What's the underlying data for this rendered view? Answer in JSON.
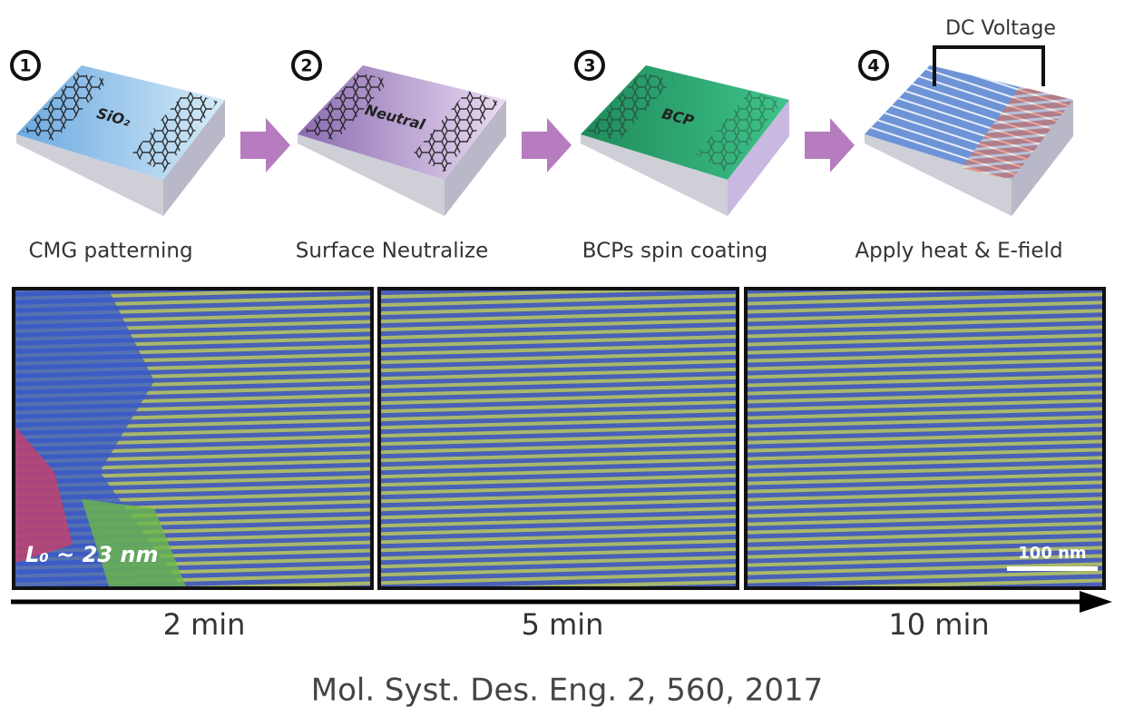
{
  "dc_voltage": "DC Voltage",
  "steps": [
    {
      "number": "1",
      "label": "CMG patterning",
      "surface_label": "SiO₂"
    },
    {
      "number": "2",
      "label": "Surface Neutralize",
      "surface_label": "Neutral"
    },
    {
      "number": "3",
      "label": "BCPs spin coating",
      "surface_label": "BCP"
    },
    {
      "number": "4",
      "label": "Apply heat & E-field"
    }
  ],
  "panels": [
    {
      "time": "2 min",
      "annotation": "L₀ ~ 23 nm"
    },
    {
      "time": "5 min"
    },
    {
      "time": "10 min",
      "annotation": "100 nm"
    }
  ],
  "citation": "Mol. Syst. Des. Eng. 2, 560, 2017"
}
